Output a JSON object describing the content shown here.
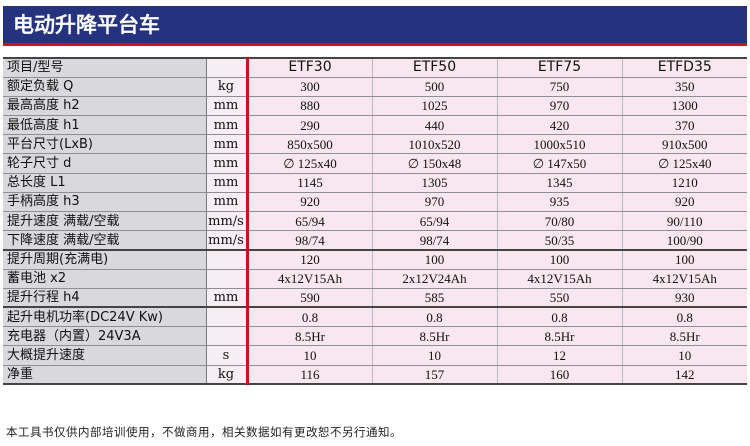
{
  "title": "电动升降平台车",
  "header": {
    "label": "项目/型号",
    "unit": "",
    "models": [
      "ETF30",
      "ETF50",
      "ETF75",
      "ETFD35"
    ]
  },
  "rows": [
    {
      "label": "额定负载  Q",
      "unit": "kg",
      "values": [
        "300",
        "500",
        "750",
        "350"
      ]
    },
    {
      "label": "最高高度 h2",
      "unit": "mm",
      "values": [
        "880",
        "1025",
        "970",
        "1300"
      ]
    },
    {
      "label": "最低高度 h1",
      "unit": "mm",
      "values": [
        "290",
        "440",
        "420",
        "370"
      ]
    },
    {
      "label": "平台尺寸(LxB)",
      "unit": "mm",
      "values": [
        "850x500",
        "1010x520",
        "1000x510",
        "910x500"
      ]
    },
    {
      "label": "轮子尺寸 d",
      "unit": "mm",
      "values": [
        "∅ 125x40",
        "∅ 150x48",
        "∅ 147x50",
        "∅ 125x40"
      ]
    },
    {
      "label": "总长度 L1",
      "unit": "mm",
      "values": [
        "1145",
        "1305",
        "1345",
        "1210"
      ]
    },
    {
      "label": "手柄高度 h3",
      "unit": "mm",
      "values": [
        "920",
        "970",
        "935",
        "920"
      ]
    },
    {
      "label": "提升速度 满载/空载",
      "unit": "mm/s",
      "values": [
        "65/94",
        "65/94",
        "70/80",
        "90/110"
      ]
    },
    {
      "label": "下降速度 满载/空载",
      "unit": "mm/s",
      "values": [
        "98/74",
        "98/74",
        "50/35",
        "100/90"
      ]
    },
    {
      "label": "提升周期(充满电)",
      "unit": "",
      "values": [
        "120",
        "100",
        "100",
        "100"
      ],
      "group_start": true
    },
    {
      "label": "蓄电池 x2",
      "unit": "",
      "values": [
        "4x12V15Ah",
        "2x12V24Ah",
        "4x12V15Ah",
        "4x12V15Ah"
      ]
    },
    {
      "label": "提升行程 h4",
      "unit": "mm",
      "values": [
        "590",
        "585",
        "550",
        "930"
      ]
    },
    {
      "label": "起升电机功率(DC24V Kw)",
      "unit": "",
      "values": [
        "0.8",
        "0.8",
        "0.8",
        "0.8"
      ],
      "group_start": true
    },
    {
      "label": "充电器（内置）24V3A",
      "unit": "",
      "values": [
        "8.5Hr",
        "8.5Hr",
        "8.5Hr",
        "8.5Hr"
      ]
    },
    {
      "label": "大概提升速度",
      "unit": "s",
      "values": [
        "10",
        "10",
        "12",
        "10"
      ]
    },
    {
      "label": "净重",
      "unit": "kg",
      "values": [
        "116",
        "157",
        "160",
        "142"
      ]
    }
  ],
  "footer": "本工具书仅供内部培训使用，不做商用，相关数据如有更改恕不另行通知。",
  "colors": {
    "title_bg": "#25337f",
    "accent": "#c4161c",
    "label_bg": "#d9d9dd",
    "value_bg": "#f8e7ee"
  }
}
